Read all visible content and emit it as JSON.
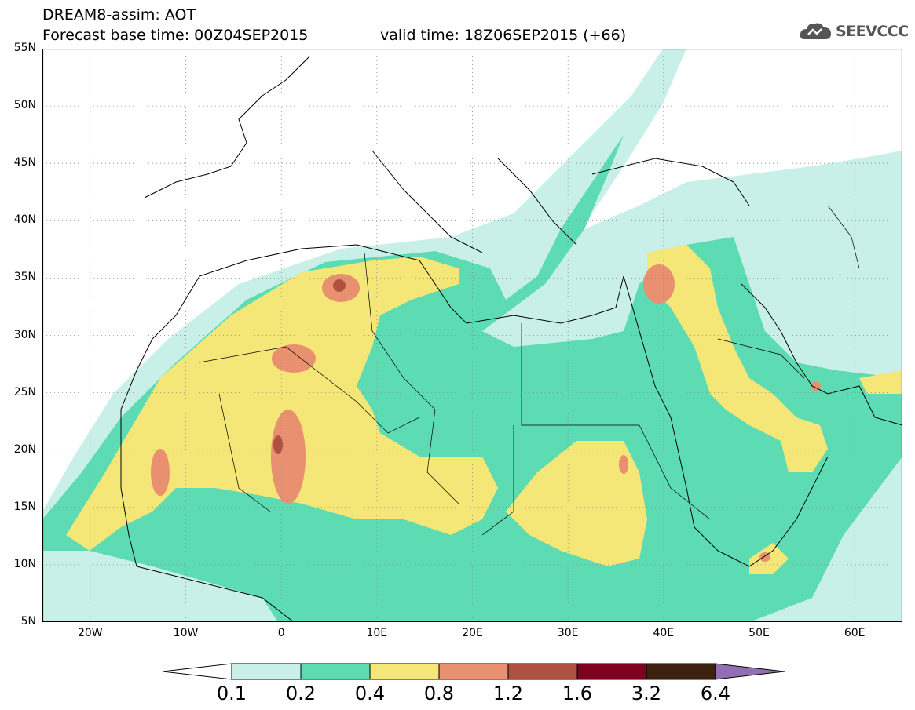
{
  "header": {
    "title": "DREAM8-assim: AOT",
    "base_time": "Forecast base time: 00Z04SEP2015",
    "valid_time": "valid time: 18Z06SEP2015 (+66)"
  },
  "logo": {
    "text": "SEEVCCC",
    "icon": "cloud-logo-icon"
  },
  "map": {
    "lat_labels": [
      "55N",
      "50N",
      "45N",
      "40N",
      "35N",
      "30N",
      "25N",
      "20N",
      "15N",
      "10N",
      "5N"
    ],
    "lon_labels": [
      "20W",
      "10W",
      "0",
      "10E",
      "20E",
      "30E",
      "40E",
      "50E",
      "60E"
    ],
    "extent": {
      "lon_min": -25,
      "lon_max": 65,
      "lat_min": 5,
      "lat_max": 55
    }
  },
  "colorbar": {
    "levels": [
      "0.1",
      "0.2",
      "0.4",
      "0.8",
      "1.2",
      "1.6",
      "3.2",
      "6.4"
    ],
    "colors": [
      "#ffffff",
      "#c8f0e8",
      "#5ddcb4",
      "#f5e678",
      "#e89070",
      "#b05040",
      "#800020",
      "#3c2010",
      "#9070b0"
    ]
  }
}
